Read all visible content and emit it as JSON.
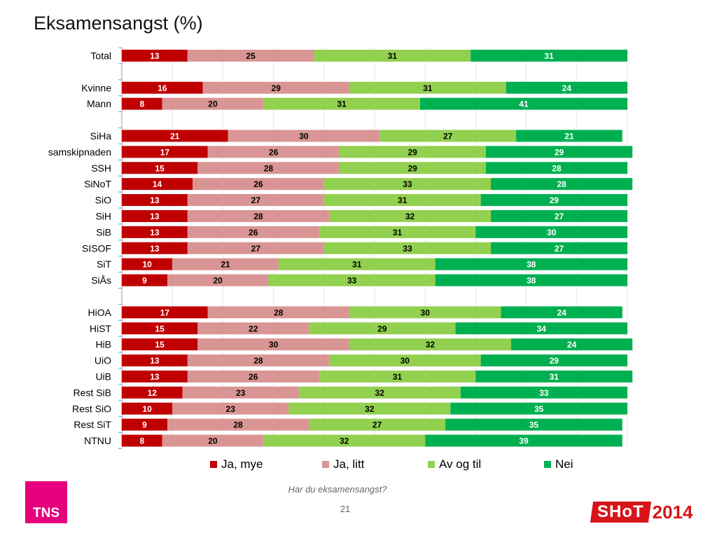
{
  "title": "Eksamensangst (%)",
  "question": "Har du eksamensangst?",
  "page_number": "21",
  "logos": {
    "tns": "TNS",
    "shot": "SHoT",
    "shot_year": "2014"
  },
  "colors": {
    "ja_mye": "#c00000",
    "ja_litt": "#d99594",
    "av_og_til": "#92d050",
    "nei": "#00b050"
  },
  "chart_data": {
    "type": "bar",
    "orientation": "horizontal",
    "stacked": true,
    "title": "Eksamensangst (%)",
    "xlabel": "",
    "ylabel": "",
    "xlim": [
      0,
      100
    ],
    "grid": true,
    "legend_position": "bottom",
    "categories": [
      "Total",
      "",
      "Kvinne",
      "Mann",
      "",
      "SiHa",
      "samskipnaden",
      "SSH",
      "SiNoT",
      "SiO",
      "SiH",
      "SiB",
      "SISOF",
      "SiT",
      "SiÅs",
      "",
      "HiOA",
      "HiST",
      "HiB",
      "UiO",
      "UiB",
      "Rest SiB",
      "Rest SiO",
      "Rest SiT",
      "NTNU"
    ],
    "series": [
      {
        "name": "Ja, mye",
        "color": "#c00000",
        "label_color": "#ffffff",
        "values": [
          13,
          null,
          16,
          8,
          null,
          21,
          17,
          15,
          14,
          13,
          13,
          13,
          13,
          10,
          9,
          null,
          17,
          15,
          15,
          13,
          13,
          12,
          10,
          9,
          8
        ]
      },
      {
        "name": "Ja, litt",
        "color": "#d99594",
        "label_color": "#000000",
        "values": [
          25,
          null,
          29,
          20,
          null,
          30,
          26,
          28,
          26,
          27,
          28,
          26,
          27,
          21,
          20,
          null,
          28,
          22,
          30,
          28,
          26,
          23,
          23,
          28,
          20
        ]
      },
      {
        "name": "Av og til",
        "color": "#92d050",
        "label_color": "#000000",
        "values": [
          31,
          null,
          31,
          31,
          null,
          27,
          29,
          29,
          33,
          31,
          32,
          31,
          33,
          31,
          33,
          null,
          30,
          29,
          32,
          30,
          31,
          32,
          32,
          27,
          32
        ]
      },
      {
        "name": "Nei",
        "color": "#00b050",
        "label_color": "#ffffff",
        "values": [
          31,
          null,
          24,
          41,
          null,
          21,
          29,
          28,
          28,
          29,
          27,
          30,
          27,
          38,
          38,
          null,
          24,
          34,
          24,
          29,
          31,
          33,
          35,
          35,
          39
        ]
      }
    ]
  }
}
